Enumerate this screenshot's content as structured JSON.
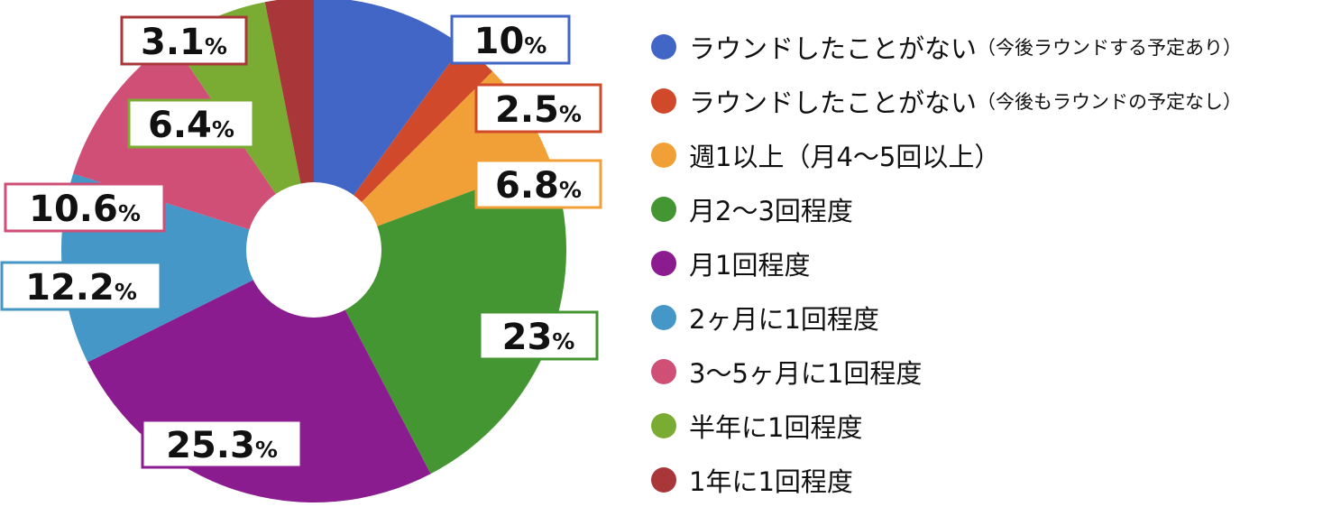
{
  "chart_data": {
    "type": "pie",
    "donut": true,
    "start": "top, clockwise",
    "legend_position": "right",
    "value_suffix": "%",
    "slices": [
      {
        "label": "ラウンドしたことがない",
        "sublabel": "（今後ラウンドする予定あり）",
        "value": 10,
        "display": "10",
        "color": "#4266c6"
      },
      {
        "label": "ラウンドしたことがない",
        "sublabel": "（今後もラウンドの予定なし）",
        "value": 2.5,
        "display": "2.5",
        "color": "#d0492b"
      },
      {
        "label": "週1以上（月4〜5回以上）",
        "sublabel": "",
        "value": 6.8,
        "display": "6.8",
        "color": "#f1a038"
      },
      {
        "label": "月2〜3回程度",
        "sublabel": "",
        "value": 23,
        "display": "23",
        "color": "#449633"
      },
      {
        "label": "月1回程度",
        "sublabel": "",
        "value": 25.3,
        "display": "25.3",
        "color": "#8b1c90"
      },
      {
        "label": "2ヶ月に1回程度",
        "sublabel": "",
        "value": 12.2,
        "display": "12.2",
        "color": "#4497c6"
      },
      {
        "label": "3〜5ヶ月に1回程度",
        "sublabel": "",
        "value": 10.6,
        "display": "10.6",
        "color": "#cf4f77"
      },
      {
        "label": "半年に1回程度",
        "sublabel": "",
        "value": 6.4,
        "display": "6.4",
        "color": "#7aab33"
      },
      {
        "label": "1年に1回程度",
        "sublabel": "",
        "value": 3.1,
        "display": "3.1",
        "color": "#a9373a"
      }
    ]
  }
}
